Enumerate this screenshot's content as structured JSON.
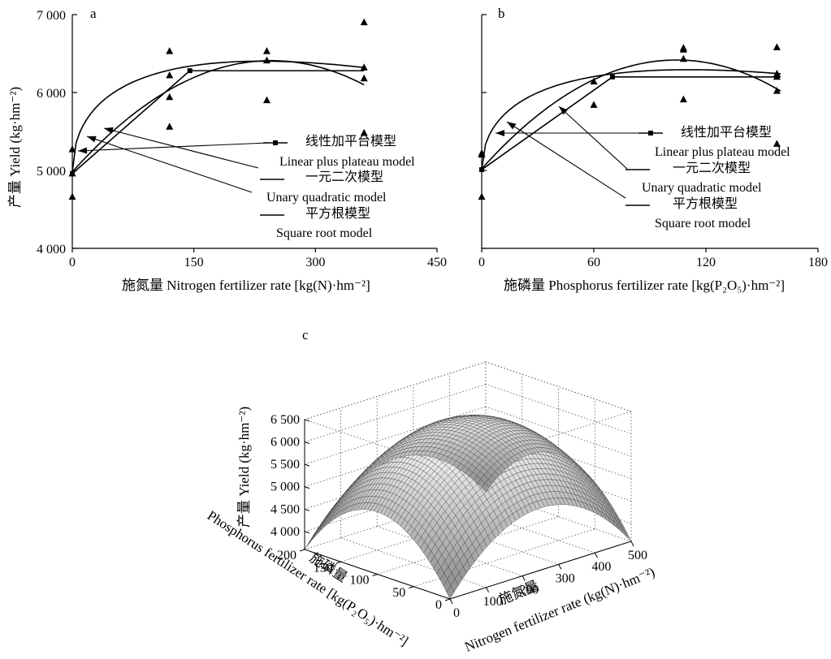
{
  "chart_data": [
    {
      "panel": "a",
      "type": "scatter",
      "xlabel": "施氮量  Nitrogen fertilizer rate [kg(N)·hm⁻²]",
      "ylabel": "产量  Yield  (kg·hm⁻²)",
      "xlim": [
        0,
        450
      ],
      "ylim": [
        4000,
        7000
      ],
      "xticks": [
        "0",
        "150",
        "300",
        "450"
      ],
      "yticks": [
        "4 000",
        "5 000",
        "6 000",
        "7 000"
      ],
      "points": [
        {
          "x": 0,
          "y": 5270
        },
        {
          "x": 0,
          "y": 4960
        },
        {
          "x": 0,
          "y": 4660
        },
        {
          "x": 120,
          "y": 6530
        },
        {
          "x": 120,
          "y": 6220
        },
        {
          "x": 120,
          "y": 5940
        },
        {
          "x": 120,
          "y": 5560
        },
        {
          "x": 240,
          "y": 6530
        },
        {
          "x": 240,
          "y": 6410
        },
        {
          "x": 240,
          "y": 5900
        },
        {
          "x": 360,
          "y": 6900
        },
        {
          "x": 360,
          "y": 6320
        },
        {
          "x": 360,
          "y": 6180
        },
        {
          "x": 360,
          "y": 5480
        }
      ],
      "series": [
        {
          "name_zh": "线性加平台模型",
          "name": "Linear plus plateau model",
          "style": "linear_plateau",
          "x0": 0,
          "y0": 4960,
          "x_break": 145,
          "plateau": 6280,
          "x_end": 360
        },
        {
          "name_zh": "一元二次模型",
          "name": "Unary quadratic model",
          "style": "quadratic",
          "a": 4980,
          "b": 11.64,
          "c": -0.0237,
          "x_end": 360
        },
        {
          "name_zh": "平方根模型",
          "name": "Square root model",
          "style": "sqrt",
          "a": 4980,
          "b": 186,
          "c": -6.08,
          "x_end": 360
        }
      ],
      "legend_position": "center-right"
    },
    {
      "panel": "b",
      "type": "scatter",
      "xlabel": "施磷量  Phosphorus fertilizer rate [kg(P₂O₅)·hm⁻²]",
      "ylabel": "",
      "xlim": [
        0,
        180
      ],
      "ylim": [
        4000,
        7000
      ],
      "xticks": [
        "0",
        "60",
        "120",
        "180"
      ],
      "yticks": [],
      "points": [
        {
          "x": 0,
          "y": 5220
        },
        {
          "x": 0,
          "y": 5200
        },
        {
          "x": 0,
          "y": 4660
        },
        {
          "x": 60,
          "y": 6140
        },
        {
          "x": 60,
          "y": 5840
        },
        {
          "x": 108,
          "y": 6570
        },
        {
          "x": 108,
          "y": 6550
        },
        {
          "x": 108,
          "y": 6430
        },
        {
          "x": 108,
          "y": 5910
        },
        {
          "x": 158,
          "y": 6580
        },
        {
          "x": 158,
          "y": 6240
        },
        {
          "x": 158,
          "y": 6200
        },
        {
          "x": 158,
          "y": 6020
        },
        {
          "x": 158,
          "y": 5340
        }
      ],
      "series": [
        {
          "name_zh": "线性加平台模型",
          "name": "Linear plus plateau model",
          "style": "linear_plateau",
          "x0": 0,
          "y0": 5010,
          "x_break": 70,
          "plateau": 6200,
          "x_end": 160
        },
        {
          "name_zh": "一元二次模型",
          "name": "Unary quadratic model",
          "style": "quadratic",
          "a": 5020,
          "b": 26.8,
          "c": -0.1285,
          "x_end": 160
        },
        {
          "name_zh": "平方根模型",
          "name": "Square root model",
          "style": "sqrt",
          "a": 5010,
          "b": 244,
          "c": -11.6,
          "x_end": 160
        }
      ],
      "legend_position": "center-right"
    },
    {
      "panel": "c",
      "type": "surface",
      "xlabel": "施氮量  Nitrogen fertilizer rate  (kg(N)·hm⁻²)",
      "ylabel": "施磷量  Phosphorus fertilizer rate  [kg(P₂O₅)·hm⁻²]",
      "zlabel": "产量  Yield  (kg·hm⁻²)",
      "xlim": [
        0,
        500
      ],
      "ylim": [
        0,
        200
      ],
      "zlim": [
        4000,
        6500
      ],
      "xticks": [
        "0",
        "100",
        "200",
        "300",
        "400",
        "500"
      ],
      "yticks": [
        "0",
        "50",
        "100",
        "150",
        "200"
      ],
      "zticks": [
        "4 000",
        "4 500",
        "5 000",
        "5 500",
        "6 000",
        "6 500"
      ],
      "surface": {
        "peak_x": 250,
        "peak_y": 100,
        "peak_z": 6380,
        "corner_z": 3600
      },
      "grid": true
    }
  ],
  "labels": {
    "panel_a": "a",
    "panel_b": "b",
    "panel_c": "c",
    "legend": [
      {
        "zh": "线性加平台模型",
        "en": "Linear plus plateau model"
      },
      {
        "zh": "一元二次模型",
        "en": "Unary quadratic model"
      },
      {
        "zh": "平方根模型",
        "en": "Square root model"
      }
    ],
    "a_xlabel": "施氮量  Nitrogen fertilizer rate [kg(N)·hm⁻²]",
    "a_ylabel": "产量  Yield  (kg·hm⁻²)",
    "b_xlabel": "施磷量  Phosphorus fertilizer rate [kg(P₂O₅)·hm⁻²]",
    "c_zlabel": "产量  Yield  (kg·hm⁻²)",
    "c_ylabel_zh": "施磷量",
    "c_ylabel_en": "Phosphorus fertilizer rate  [kg(P₂O₅)·hm⁻²]",
    "c_xlabel_zh": "施氮量",
    "c_xlabel_en": "Nitrogen fertilizer rate  (kg(N)·hm⁻²)"
  }
}
